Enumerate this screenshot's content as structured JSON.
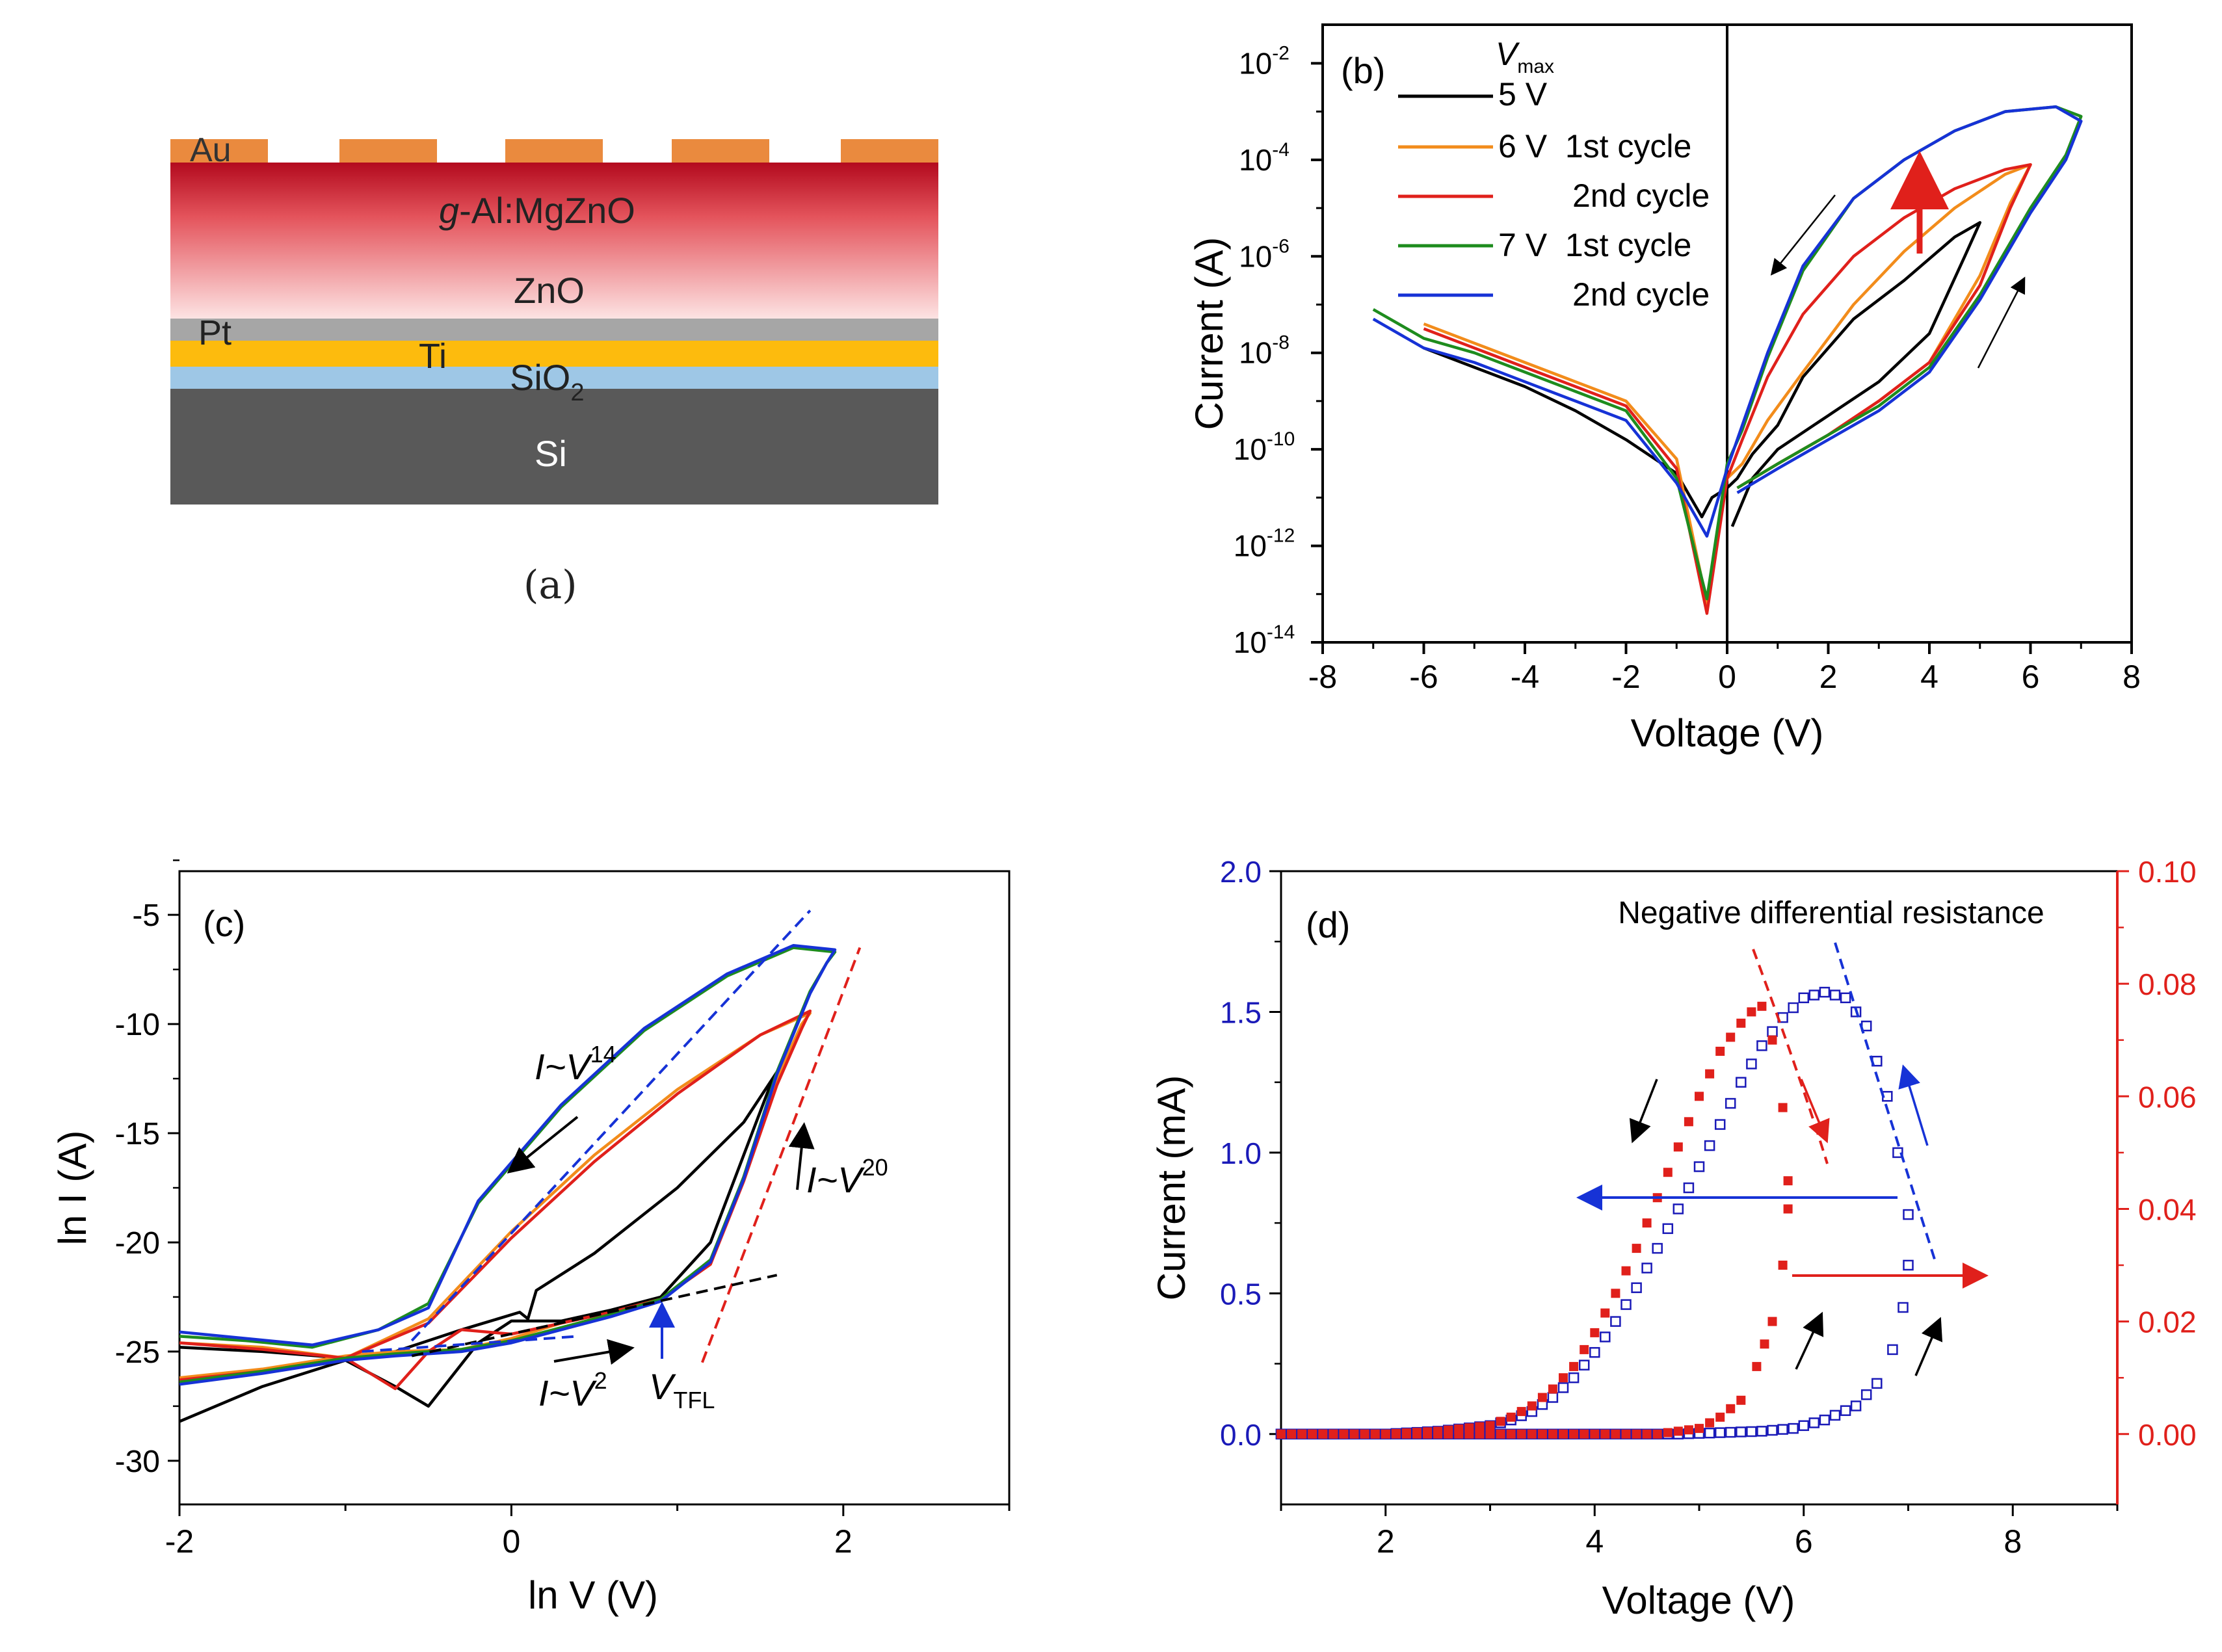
{
  "panel_a": {
    "caption": "(a)",
    "layers": [
      {
        "name": "Au",
        "color": "#ea8a3e"
      },
      {
        "name": "g-Al:MgZnO",
        "prefix": "g",
        "rest": "-Al:MgZnO",
        "color": "#c8102e"
      },
      {
        "name": "ZnO",
        "color": "#fde3e3"
      },
      {
        "name": "Pt",
        "color": "#a6a6a6"
      },
      {
        "name": "Ti",
        "color": "#fdbb0d"
      },
      {
        "name": "SiO2",
        "base": "SiO",
        "sub": "2",
        "color": "#9ec7e6"
      },
      {
        "name": "Si",
        "color": "#595959"
      }
    ]
  },
  "chart_data": [
    {
      "panel": "b",
      "label": "(b)",
      "type": "line",
      "xlabel": "Voltage (V)",
      "ylabel": "Current (A)",
      "xlim": [
        -8,
        8
      ],
      "ylim_log10": [
        -14,
        -1.2
      ],
      "xticks": [
        "-8",
        "-6",
        "-4",
        "-2",
        "0",
        "2",
        "4",
        "6",
        "8"
      ],
      "yticks": [
        {
          "base": "10",
          "exp": "-2"
        },
        {
          "base": "10",
          "exp": "-4"
        },
        {
          "base": "10",
          "exp": "-6"
        },
        {
          "base": "10",
          "exp": "-8"
        },
        {
          "base": "10",
          "exp": "-10"
        },
        {
          "base": "10",
          "exp": "-12"
        },
        {
          "base": "10",
          "exp": "-14"
        }
      ],
      "legend_title": "V",
      "legend_title_sub": "max",
      "legend": [
        {
          "label": "5 V",
          "color": "#000000"
        },
        {
          "label": "6 V  1st cycle",
          "color": "#f28c1b"
        },
        {
          "label": "2nd cycle",
          "color": "#e0201b"
        },
        {
          "label": "7 V  1st cycle",
          "color": "#1e8c1e"
        },
        {
          "label": "2nd cycle",
          "color": "#1632d6"
        }
      ],
      "series": [
        {
          "name": "5 V",
          "color": "#000000",
          "x": [
            0.1,
            0.5,
            1.0,
            2.0,
            3.0,
            4.0,
            4.7,
            5.0,
            4.5,
            3.5,
            2.5,
            1.5,
            1.0,
            0.5,
            0.2,
            0,
            -0.3,
            -0.5,
            -1.0,
            -2.0,
            -3.0,
            -4.0,
            -5.0,
            -6.0
          ],
          "log10": [
            -11.6,
            -10.6,
            -10.0,
            -9.3,
            -8.6,
            -7.6,
            -6.0,
            -5.3,
            -5.6,
            -6.5,
            -7.3,
            -8.5,
            -9.5,
            -10.1,
            -10.6,
            -10.8,
            -11.0,
            -11.4,
            -10.5,
            -9.8,
            -9.2,
            -8.7,
            -8.3,
            -7.9
          ]
        },
        {
          "name": "6 V 1st cycle",
          "color": "#f28c1b",
          "x": [
            0.2,
            1.0,
            2.0,
            3.0,
            4.0,
            5.0,
            5.6,
            6.0,
            5.5,
            4.5,
            3.5,
            2.5,
            1.5,
            0.8,
            0.3,
            0,
            -0.4,
            -1.0,
            -2.0,
            -3.0,
            -4.0,
            -5.0,
            -6.0
          ],
          "log10": [
            -10.8,
            -10.3,
            -9.7,
            -9.0,
            -8.2,
            -6.4,
            -4.9,
            -4.1,
            -4.3,
            -5.0,
            -5.9,
            -7.0,
            -8.4,
            -9.4,
            -10.3,
            -10.6,
            -13.2,
            -10.2,
            -9.0,
            -8.6,
            -8.2,
            -7.8,
            -7.4
          ]
        },
        {
          "name": "6 V 2nd cycle",
          "color": "#e0201b",
          "x": [
            0.2,
            1.0,
            2.0,
            3.0,
            4.0,
            5.0,
            5.6,
            6.0,
            5.5,
            4.5,
            3.5,
            2.5,
            1.5,
            0.8,
            0.3,
            0,
            -0.4,
            -1.0,
            -2.0,
            -3.0,
            -4.0,
            -5.0,
            -6.0
          ],
          "log10": [
            -10.8,
            -10.3,
            -9.7,
            -9.0,
            -8.2,
            -6.6,
            -5.0,
            -4.1,
            -4.2,
            -4.6,
            -5.2,
            -6.0,
            -7.2,
            -8.5,
            -9.8,
            -10.6,
            -13.4,
            -10.4,
            -9.1,
            -8.7,
            -8.3,
            -7.9,
            -7.5
          ]
        },
        {
          "name": "7 V 1st cycle",
          "color": "#1e8c1e",
          "x": [
            0.2,
            1.0,
            2.0,
            3.0,
            4.0,
            5.0,
            6.0,
            6.7,
            7.0,
            6.5,
            5.5,
            4.5,
            3.5,
            2.5,
            1.5,
            0.8,
            0.3,
            0,
            -0.4,
            -1.0,
            -2.0,
            -3.0,
            -4.0,
            -5.0,
            -6.0,
            -7.0
          ],
          "log10": [
            -10.8,
            -10.3,
            -9.7,
            -9.1,
            -8.3,
            -6.8,
            -5.0,
            -3.9,
            -3.1,
            -2.9,
            -3.0,
            -3.4,
            -4.0,
            -4.8,
            -6.3,
            -8.1,
            -9.6,
            -10.3,
            -13.1,
            -10.6,
            -9.2,
            -8.8,
            -8.4,
            -8.0,
            -7.7,
            -7.1
          ]
        },
        {
          "name": "7 V 2nd cycle",
          "color": "#1632d6",
          "x": [
            0.2,
            1.0,
            2.0,
            3.0,
            4.0,
            5.0,
            6.0,
            6.7,
            7.0,
            6.5,
            5.5,
            4.5,
            3.5,
            2.5,
            1.5,
            0.8,
            0.3,
            0,
            -0.4,
            -1.0,
            -2.0,
            -3.0,
            -4.0,
            -5.0,
            -6.0,
            -7.0
          ],
          "log10": [
            -10.9,
            -10.4,
            -9.8,
            -9.2,
            -8.4,
            -6.9,
            -5.1,
            -4.0,
            -3.2,
            -2.9,
            -3.0,
            -3.4,
            -4.0,
            -4.8,
            -6.2,
            -8.0,
            -9.5,
            -10.4,
            -11.8,
            -10.7,
            -9.4,
            -9.0,
            -8.6,
            -8.2,
            -7.9,
            -7.3
          ]
        }
      ],
      "sweep_arrows": "up arrows on forward sweep, down arrow on reverse, red arrow showing increase"
    },
    {
      "panel": "c",
      "label": "(c)",
      "type": "line",
      "xlabel": "ln V (V)",
      "ylabel": "ln I (A)",
      "xlim": [
        -2,
        3
      ],
      "ylim": [
        -32,
        -3
      ],
      "xticks": [
        "-2",
        "0",
        "2"
      ],
      "yticks": [
        "-5",
        "-10",
        "-15",
        "-20",
        "-25",
        "-30"
      ],
      "annotations": {
        "reverse": {
          "text": "I~V",
          "exp": "14"
        },
        "forward_high": {
          "text": "I~V",
          "exp": "20"
        },
        "forward_low": {
          "text": "I~V",
          "exp": "2"
        },
        "vtfl": {
          "text": "V",
          "sub": "TFL"
        }
      },
      "series": [
        {
          "name": "5 V",
          "color": "#000000",
          "x": [
            -2.0,
            -1.5,
            -1.0,
            -0.7,
            -0.5,
            -0.2,
            0.0,
            0.3,
            0.6,
            0.9,
            1.2,
            1.4,
            1.55,
            1.6,
            1.4,
            1.0,
            0.5,
            0.15,
            0.1,
            0.05,
            -0.3,
            -0.7,
            -1.0,
            -1.5,
            -2.0
          ],
          "y": [
            -28.2,
            -26.6,
            -25.4,
            -26.6,
            -27.5,
            -24.6,
            -23.6,
            -23.6,
            -23.1,
            -22.5,
            -20.0,
            -16.0,
            -13.0,
            -12.2,
            -14.5,
            -17.5,
            -20.5,
            -22.2,
            -23.5,
            -23.2,
            -24.0,
            -25.0,
            -25.3,
            -25.0,
            -24.8
          ]
        },
        {
          "name": "6 V 1st cycle",
          "color": "#f28c1b",
          "x": [
            -2.0,
            -1.5,
            -1.0,
            -0.7,
            -0.3,
            0.0,
            0.3,
            0.6,
            0.9,
            1.2,
            1.4,
            1.6,
            1.75,
            1.8,
            1.5,
            1.0,
            0.5,
            0.0,
            -0.5,
            -1.0,
            -1.5,
            -2.0
          ],
          "y": [
            -26.2,
            -25.8,
            -25.2,
            -25.0,
            -24.9,
            -24.4,
            -23.7,
            -23.2,
            -22.6,
            -21.0,
            -17.0,
            -12.5,
            -10.0,
            -9.5,
            -10.5,
            -13.0,
            -16.0,
            -19.5,
            -23.5,
            -25.3,
            -24.8,
            -24.6
          ]
        },
        {
          "name": "6 V 2nd cycle",
          "color": "#e0201b",
          "x": [
            -2.0,
            -1.5,
            -1.0,
            -0.7,
            -0.5,
            -0.3,
            0.0,
            0.3,
            0.6,
            0.9,
            1.2,
            1.4,
            1.6,
            1.75,
            1.8,
            1.5,
            1.0,
            0.5,
            0.0,
            -0.5,
            -1.0,
            -1.5,
            -2.0
          ],
          "y": [
            -26.3,
            -25.9,
            -25.3,
            -26.7,
            -25.0,
            -24.0,
            -24.2,
            -23.7,
            -23.2,
            -22.6,
            -21.0,
            -17.2,
            -12.8,
            -10.2,
            -9.4,
            -10.5,
            -13.2,
            -16.3,
            -19.8,
            -23.7,
            -25.3,
            -24.9,
            -24.6
          ]
        },
        {
          "name": "7 V 1st cycle",
          "color": "#1e8c1e",
          "x": [
            -2.0,
            -1.5,
            -1.0,
            -0.7,
            -0.3,
            0.0,
            0.3,
            0.6,
            0.9,
            1.2,
            1.4,
            1.6,
            1.8,
            1.9,
            1.95,
            1.7,
            1.3,
            0.8,
            0.3,
            -0.2,
            -0.5,
            -0.8,
            -1.2,
            -1.6,
            -2.0
          ],
          "y": [
            -26.4,
            -25.9,
            -25.3,
            -25.1,
            -24.9,
            -24.5,
            -23.9,
            -23.3,
            -22.6,
            -20.8,
            -17.0,
            -12.2,
            -8.5,
            -7.2,
            -6.7,
            -6.5,
            -7.8,
            -10.3,
            -13.8,
            -18.2,
            -22.8,
            -24.0,
            -24.8,
            -24.5,
            -24.3
          ]
        },
        {
          "name": "7 V 2nd cycle",
          "color": "#1632d6",
          "x": [
            -2.0,
            -1.5,
            -1.0,
            -0.7,
            -0.3,
            0.0,
            0.3,
            0.6,
            0.9,
            1.2,
            1.4,
            1.6,
            1.8,
            1.9,
            1.95,
            1.7,
            1.3,
            0.8,
            0.3,
            -0.2,
            -0.5,
            -0.8,
            -1.2,
            -1.6,
            -2.0
          ],
          "y": [
            -26.5,
            -26.0,
            -25.4,
            -25.2,
            -25.0,
            -24.6,
            -24.0,
            -23.4,
            -22.7,
            -20.9,
            -17.1,
            -12.3,
            -8.6,
            -7.2,
            -6.6,
            -6.4,
            -7.7,
            -10.2,
            -13.7,
            -18.1,
            -23.0,
            -24.0,
            -24.7,
            -24.4,
            -24.1
          ]
        }
      ],
      "fits": [
        {
          "name": "I~V14 fit",
          "color": "#1632d6",
          "x": [
            -0.6,
            1.8
          ],
          "y": [
            -24.5,
            -4.8
          ]
        },
        {
          "name": "I~V20 fit",
          "color": "#e0201b",
          "x": [
            1.15,
            2.1
          ],
          "y": [
            -25.5,
            -6.5
          ]
        },
        {
          "name": "I~V2 fit",
          "color": "#000000",
          "x": [
            -0.6,
            1.6
          ],
          "y": [
            -25.2,
            -21.5
          ]
        },
        {
          "name": "blue fit low",
          "color": "#1632d6",
          "x": [
            -0.9,
            0.4
          ],
          "y": [
            -25.0,
            -24.3
          ]
        }
      ]
    },
    {
      "panel": "d",
      "label": "(d)",
      "type": "scatter",
      "title": "Negative differential resistance",
      "xlabel": "Voltage (V)",
      "ylabel": "Current (mA)",
      "xlim": [
        1,
        9
      ],
      "ylim": [
        -0.25,
        2.0
      ],
      "ylim_right": [
        -0.0125,
        0.1
      ],
      "xticks": [
        "2",
        "4",
        "6",
        "8"
      ],
      "yticks_left": [
        "0.0",
        "0.5",
        "1.0",
        "1.5",
        "2.0"
      ],
      "yticks_right": [
        "0.00",
        "0.02",
        "0.04",
        "0.06",
        "0.08",
        "0.10"
      ],
      "left_axis_color": "#1a1ab8",
      "right_axis_color": "#e0201b",
      "series": [
        {
          "name": "7 V (left axis)",
          "color": "#1a1ab8",
          "marker": "open-square",
          "forward_x": [
            1.0,
            2.0,
            3.0,
            4.0,
            4.8,
            5.2,
            5.6,
            5.9,
            6.2,
            6.5,
            6.7,
            6.85,
            6.95,
            7.0
          ],
          "forward_y": [
            0.0,
            0.0,
            0.0,
            0.0,
            0.0,
            0.005,
            0.01,
            0.02,
            0.05,
            0.1,
            0.18,
            0.3,
            0.45,
            0.6
          ],
          "reverse_x": [
            7.0,
            6.9,
            6.8,
            6.6,
            6.4,
            6.2,
            6.0,
            5.8,
            5.6,
            5.4,
            5.2,
            5.0,
            4.8,
            4.6,
            4.4,
            4.2,
            4.0,
            3.8,
            3.6,
            3.4,
            3.2,
            3.0,
            2.5,
            2.0,
            1.0
          ],
          "reverse_y": [
            0.78,
            1.0,
            1.2,
            1.45,
            1.55,
            1.57,
            1.55,
            1.48,
            1.38,
            1.25,
            1.1,
            0.95,
            0.8,
            0.66,
            0.52,
            0.4,
            0.29,
            0.2,
            0.13,
            0.08,
            0.05,
            0.03,
            0.01,
            0.0,
            0.0
          ]
        },
        {
          "name": "6 V (right axis)",
          "color": "#e0201b",
          "marker": "filled-square",
          "forward_x": [
            1.0,
            2.0,
            3.0,
            4.0,
            4.6,
            5.0,
            5.2,
            5.4,
            5.55,
            5.7,
            5.8,
            5.85
          ],
          "forward_y": [
            0.0,
            0.0,
            0.0,
            0.0,
            0.0,
            0.001,
            0.003,
            0.006,
            0.012,
            0.02,
            0.03,
            0.04
          ],
          "reverse_x": [
            5.85,
            5.8,
            5.7,
            5.6,
            5.5,
            5.4,
            5.2,
            5.0,
            4.8,
            4.6,
            4.4,
            4.2,
            4.0,
            3.8,
            3.6,
            3.4,
            3.2,
            3.0,
            2.5,
            2.0,
            1.0
          ],
          "reverse_y": [
            0.045,
            0.058,
            0.07,
            0.076,
            0.075,
            0.073,
            0.068,
            0.06,
            0.051,
            0.042,
            0.033,
            0.025,
            0.018,
            0.012,
            0.008,
            0.005,
            0.003,
            0.0015,
            0.0005,
            0.0,
            0.0
          ]
        }
      ]
    }
  ]
}
